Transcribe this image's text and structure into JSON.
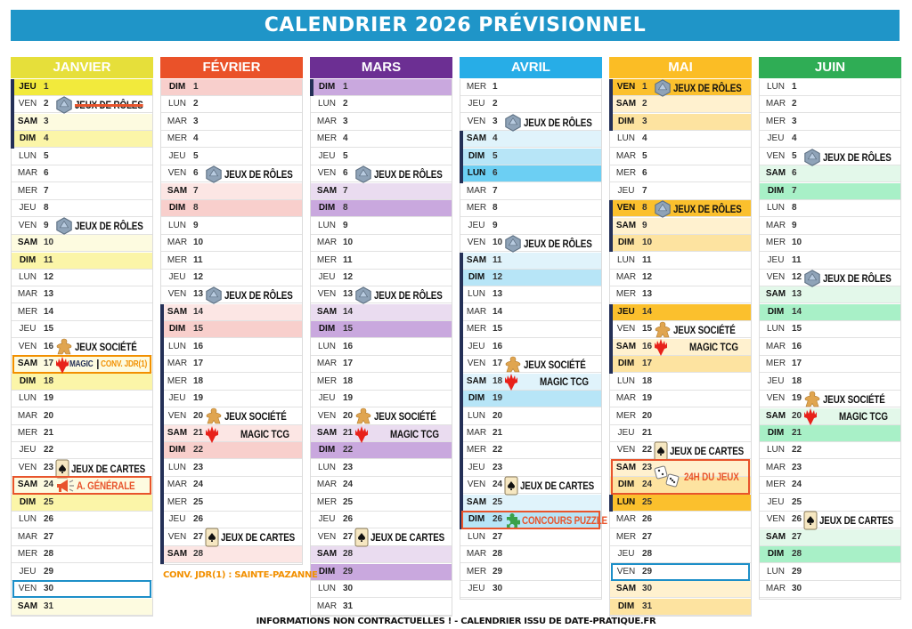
{
  "title": "CALENDRIER 2026 PRÉVISIONNEL",
  "note": "CONV. JDR(1) : SAINTE-PAZANNE",
  "footer": "INFORMATIONS NON CONTRACTUELLES ! - CALENDRIER ISSU DE DATE-PRATIQUE.FR",
  "colors": {
    "title_bar": "#1f95c8",
    "vacation_bar": "#243057",
    "box_red": "#e8542c",
    "box_orange": "#f29000",
    "box_blue": "#1d8fc8"
  },
  "months": [
    {
      "name": "JANVIER",
      "colors": {
        "header": "#e6df3a",
        "sat": "#fdfbe0",
        "sun": "#fbf5a8",
        "holiday": "#f2ea3c"
      },
      "days": [
        [
          "JEU",
          1,
          "f"
        ],
        [
          "VEN",
          2
        ],
        [
          "SAM",
          3
        ],
        [
          "DIM",
          4
        ],
        [
          "LUN",
          5
        ],
        [
          "MAR",
          6
        ],
        [
          "MER",
          7
        ],
        [
          "JEU",
          8
        ],
        [
          "VEN",
          9
        ],
        [
          "SAM",
          10
        ],
        [
          "DIM",
          11
        ],
        [
          "LUN",
          12
        ],
        [
          "MAR",
          13
        ],
        [
          "MER",
          14
        ],
        [
          "JEU",
          15
        ],
        [
          "VEN",
          16
        ],
        [
          "SAM",
          17
        ],
        [
          "DIM",
          18
        ],
        [
          "LUN",
          19
        ],
        [
          "MAR",
          20
        ],
        [
          "MER",
          21
        ],
        [
          "JEU",
          22
        ],
        [
          "VEN",
          23
        ],
        [
          "SAM",
          24
        ],
        [
          "DIM",
          25
        ],
        [
          "LUN",
          26
        ],
        [
          "MAR",
          27
        ],
        [
          "MER",
          28
        ],
        [
          "JEU",
          29
        ],
        [
          "VEN",
          30
        ],
        [
          "SAM",
          31
        ]
      ],
      "vacation_ranges": [
        [
          1,
          4
        ]
      ],
      "events": [
        {
          "day": 2,
          "icon": "d20-icon",
          "label": "JEUX DE RÔLES",
          "style": "strike"
        },
        {
          "day": 9,
          "icon": "d20-icon",
          "label": "JEUX DE RÔLES"
        },
        {
          "day": 16,
          "icon": "meeple-icon",
          "label": "JEUX SOCIÉTÉ"
        },
        {
          "day": 17,
          "icon": "magic-icon",
          "label": "MAGIC",
          "label2": "CONV. JDR(1)",
          "style": "magicsmall",
          "box": "orange"
        },
        {
          "day": 23,
          "icon": "card-icon",
          "label": "JEUX DE CARTES"
        },
        {
          "day": 24,
          "icon": "megaphone-icon",
          "label": "A. GÉNÉRALE",
          "style": "red",
          "box": "red"
        },
        {
          "day": 30,
          "box": "blue"
        }
      ]
    },
    {
      "name": "FÉVRIER",
      "colors": {
        "header": "#ea5229",
        "sat": "#fce6e4",
        "sun": "#f8cfcc",
        "holiday": "#f4a9a0"
      },
      "days": [
        [
          "DIM",
          1
        ],
        [
          "LUN",
          2
        ],
        [
          "MAR",
          3
        ],
        [
          "MER",
          4
        ],
        [
          "JEU",
          5
        ],
        [
          "VEN",
          6
        ],
        [
          "SAM",
          7
        ],
        [
          "DIM",
          8
        ],
        [
          "LUN",
          9
        ],
        [
          "MAR",
          10
        ],
        [
          "MER",
          11
        ],
        [
          "JEU",
          12
        ],
        [
          "VEN",
          13
        ],
        [
          "SAM",
          14
        ],
        [
          "DIM",
          15
        ],
        [
          "LUN",
          16
        ],
        [
          "MAR",
          17
        ],
        [
          "MER",
          18
        ],
        [
          "JEU",
          19
        ],
        [
          "VEN",
          20
        ],
        [
          "SAM",
          21
        ],
        [
          "DIM",
          22
        ],
        [
          "LUN",
          23
        ],
        [
          "MAR",
          24
        ],
        [
          "MER",
          25
        ],
        [
          "JEU",
          26
        ],
        [
          "VEN",
          27
        ],
        [
          "SAM",
          28
        ]
      ],
      "vacation_ranges": [
        [
          14,
          28
        ]
      ],
      "events": [
        {
          "day": 6,
          "icon": "d20-icon",
          "label": "JEUX DE RÔLES"
        },
        {
          "day": 13,
          "icon": "d20-icon",
          "label": "JEUX DE RÔLES"
        },
        {
          "day": 20,
          "icon": "meeple-icon",
          "label": "JEUX SOCIÉTÉ"
        },
        {
          "day": 21,
          "icon": "magic-icon",
          "label": "MAGIC TCG",
          "style": "magic"
        },
        {
          "day": 27,
          "icon": "card-icon",
          "label": "JEUX DE CARTES"
        }
      ]
    },
    {
      "name": "MARS",
      "colors": {
        "header": "#6c2f93",
        "sat": "#eadcf0",
        "sun": "#c9a8de",
        "holiday": "#b48ad2"
      },
      "days": [
        [
          "DIM",
          1
        ],
        [
          "LUN",
          2
        ],
        [
          "MAR",
          3
        ],
        [
          "MER",
          4
        ],
        [
          "JEU",
          5
        ],
        [
          "VEN",
          6
        ],
        [
          "SAM",
          7
        ],
        [
          "DIM",
          8
        ],
        [
          "LUN",
          9
        ],
        [
          "MAR",
          10
        ],
        [
          "MER",
          11
        ],
        [
          "JEU",
          12
        ],
        [
          "VEN",
          13
        ],
        [
          "SAM",
          14
        ],
        [
          "DIM",
          15
        ],
        [
          "LUN",
          16
        ],
        [
          "MAR",
          17
        ],
        [
          "MER",
          18
        ],
        [
          "JEU",
          19
        ],
        [
          "VEN",
          20
        ],
        [
          "SAM",
          21
        ],
        [
          "DIM",
          22
        ],
        [
          "LUN",
          23
        ],
        [
          "MAR",
          24
        ],
        [
          "MER",
          25
        ],
        [
          "JEU",
          26
        ],
        [
          "VEN",
          27
        ],
        [
          "SAM",
          28
        ],
        [
          "DIM",
          29
        ],
        [
          "LUN",
          30
        ],
        [
          "MAR",
          31
        ]
      ],
      "vacation_ranges": [
        [
          1,
          1
        ]
      ],
      "events": [
        {
          "day": 6,
          "icon": "d20-icon",
          "label": "JEUX DE RÔLES"
        },
        {
          "day": 13,
          "icon": "d20-icon",
          "label": "JEUX DE RÔLES"
        },
        {
          "day": 20,
          "icon": "meeple-icon",
          "label": "JEUX SOCIÉTÉ"
        },
        {
          "day": 21,
          "icon": "magic-icon",
          "label": "MAGIC TCG",
          "style": "magic"
        },
        {
          "day": 27,
          "icon": "card-icon",
          "label": "JEUX DE CARTES"
        }
      ]
    },
    {
      "name": "AVRIL",
      "colors": {
        "header": "#27ade7",
        "sat": "#e0f3fb",
        "sun": "#b7e5f7",
        "holiday": "#6ccff3"
      },
      "days": [
        [
          "MER",
          1
        ],
        [
          "JEU",
          2
        ],
        [
          "VEN",
          3
        ],
        [
          "SAM",
          4
        ],
        [
          "DIM",
          5
        ],
        [
          "LUN",
          6,
          "f"
        ],
        [
          "MAR",
          7
        ],
        [
          "MER",
          8
        ],
        [
          "JEU",
          9
        ],
        [
          "VEN",
          10
        ],
        [
          "SAM",
          11
        ],
        [
          "DIM",
          12
        ],
        [
          "LUN",
          13
        ],
        [
          "MAR",
          14
        ],
        [
          "MER",
          15
        ],
        [
          "JEU",
          16
        ],
        [
          "VEN",
          17
        ],
        [
          "SAM",
          18
        ],
        [
          "DIM",
          19
        ],
        [
          "LUN",
          20
        ],
        [
          "MAR",
          21
        ],
        [
          "MER",
          22
        ],
        [
          "JEU",
          23
        ],
        [
          "VEN",
          24
        ],
        [
          "SAM",
          25
        ],
        [
          "DIM",
          26
        ],
        [
          "LUN",
          27
        ],
        [
          "MAR",
          28
        ],
        [
          "MER",
          29
        ],
        [
          "JEU",
          30
        ]
      ],
      "vacation_ranges": [
        [
          4,
          6
        ],
        [
          11,
          26
        ]
      ],
      "events": [
        {
          "day": 3,
          "icon": "d20-icon",
          "label": "JEUX DE RÔLES"
        },
        {
          "day": 10,
          "icon": "d20-icon",
          "label": "JEUX DE RÔLES"
        },
        {
          "day": 17,
          "icon": "meeple-icon",
          "label": "JEUX SOCIÉTÉ"
        },
        {
          "day": 18,
          "icon": "magic-icon",
          "label": "MAGIC TCG",
          "style": "magic"
        },
        {
          "day": 24,
          "icon": "card-icon",
          "label": "JEUX DE CARTES"
        },
        {
          "day": 26,
          "icon": "puzzle-icon",
          "label": "CONCOURS PUZZLE",
          "style": "red",
          "box": "red"
        }
      ]
    },
    {
      "name": "MAI",
      "colors": {
        "header": "#fbbd25",
        "sat": "#fff1cf",
        "sun": "#fde3a0",
        "holiday": "#fbc02d"
      },
      "days": [
        [
          "VEN",
          1,
          "f"
        ],
        [
          "SAM",
          2
        ],
        [
          "DIM",
          3
        ],
        [
          "LUN",
          4
        ],
        [
          "MAR",
          5
        ],
        [
          "MER",
          6
        ],
        [
          "JEU",
          7
        ],
        [
          "VEN",
          8,
          "f"
        ],
        [
          "SAM",
          9
        ],
        [
          "DIM",
          10
        ],
        [
          "LUN",
          11
        ],
        [
          "MAR",
          12
        ],
        [
          "MER",
          13
        ],
        [
          "JEU",
          14,
          "f"
        ],
        [
          "VEN",
          15
        ],
        [
          "SAM",
          16
        ],
        [
          "DIM",
          17
        ],
        [
          "LUN",
          18
        ],
        [
          "MAR",
          19
        ],
        [
          "MER",
          20
        ],
        [
          "JEU",
          21
        ],
        [
          "VEN",
          22
        ],
        [
          "SAM",
          23
        ],
        [
          "DIM",
          24
        ],
        [
          "LUN",
          25,
          "f"
        ],
        [
          "MAR",
          26
        ],
        [
          "MER",
          27
        ],
        [
          "JEU",
          28
        ],
        [
          "VEN",
          29
        ],
        [
          "SAM",
          30
        ],
        [
          "DIM",
          31
        ]
      ],
      "vacation_ranges": [
        [
          1,
          3
        ],
        [
          8,
          10
        ],
        [
          14,
          17
        ],
        [
          25,
          25
        ]
      ],
      "events": [
        {
          "day": 1,
          "icon": "d20-icon",
          "label": "JEUX DE RÔLES"
        },
        {
          "day": 8,
          "icon": "d20-icon",
          "label": "JEUX DE RÔLES"
        },
        {
          "day": 15,
          "icon": "meeple-icon",
          "label": "JEUX SOCIÉTÉ"
        },
        {
          "day": 16,
          "icon": "magic-icon",
          "label": "MAGIC TCG",
          "style": "magic"
        },
        {
          "day": 22,
          "icon": "card-icon",
          "label": "JEUX DE CARTES"
        },
        {
          "day": 23,
          "span": 2,
          "icon": "dice-icon",
          "label": "24H DU JEUX",
          "style": "red",
          "box": "red"
        },
        {
          "day": 29,
          "box": "blue"
        }
      ]
    },
    {
      "name": "JUIN",
      "colors": {
        "header": "#2fad55",
        "sat": "#e3f8ea",
        "sun": "#a8f0c7",
        "holiday": "#6fdc9c"
      },
      "days": [
        [
          "LUN",
          1
        ],
        [
          "MAR",
          2
        ],
        [
          "MER",
          3
        ],
        [
          "JEU",
          4
        ],
        [
          "VEN",
          5
        ],
        [
          "SAM",
          6
        ],
        [
          "DIM",
          7
        ],
        [
          "LUN",
          8
        ],
        [
          "MAR",
          9
        ],
        [
          "MER",
          10
        ],
        [
          "JEU",
          11
        ],
        [
          "VEN",
          12
        ],
        [
          "SAM",
          13
        ],
        [
          "DIM",
          14
        ],
        [
          "LUN",
          15
        ],
        [
          "MAR",
          16
        ],
        [
          "MER",
          17
        ],
        [
          "JEU",
          18
        ],
        [
          "VEN",
          19
        ],
        [
          "SAM",
          20
        ],
        [
          "DIM",
          21
        ],
        [
          "LUN",
          22
        ],
        [
          "MAR",
          23
        ],
        [
          "MER",
          24
        ],
        [
          "JEU",
          25
        ],
        [
          "VEN",
          26
        ],
        [
          "SAM",
          27
        ],
        [
          "DIM",
          28
        ],
        [
          "LUN",
          29
        ],
        [
          "MAR",
          30
        ]
      ],
      "vacation_ranges": [],
      "events": [
        {
          "day": 5,
          "icon": "d20-icon",
          "label": "JEUX DE RÔLES"
        },
        {
          "day": 12,
          "icon": "d20-icon",
          "label": "JEUX DE RÔLES"
        },
        {
          "day": 19,
          "icon": "meeple-icon",
          "label": "JEUX SOCIÉTÉ"
        },
        {
          "day": 20,
          "icon": "magic-icon",
          "label": "MAGIC TCG",
          "style": "magic"
        },
        {
          "day": 26,
          "icon": "card-icon",
          "label": "JEUX DE CARTES"
        }
      ]
    }
  ]
}
